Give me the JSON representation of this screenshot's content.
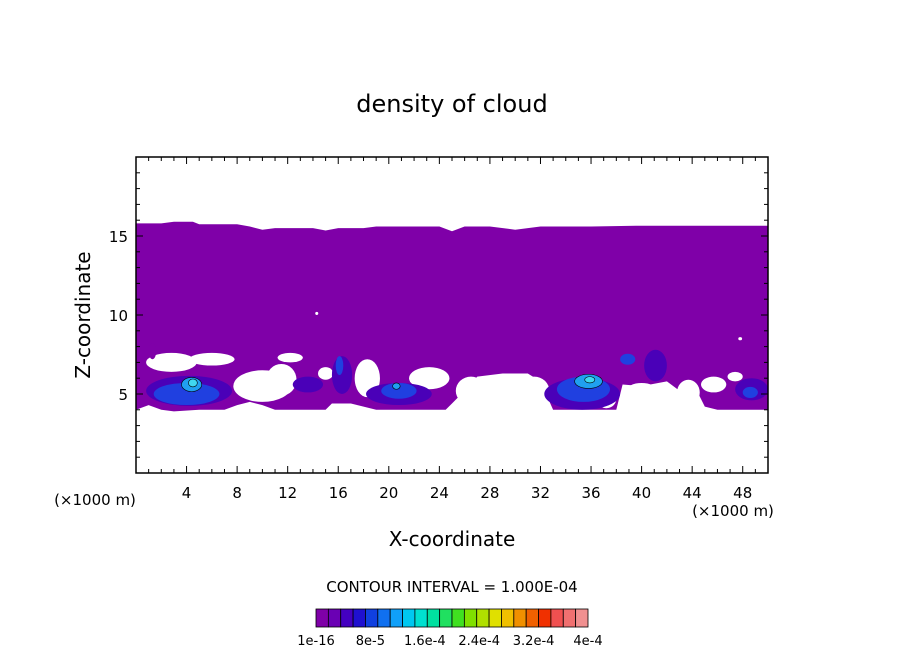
{
  "chart_data": {
    "type": "heatmap",
    "title": "density of cloud",
    "xlabel": "X-coordinate",
    "ylabel": "Z-coordinate",
    "x_unit": "(×1000 m)",
    "y_unit": "(×1000 m)",
    "xlim": [
      0,
      50
    ],
    "ylim": [
      0,
      20
    ],
    "x_ticks": [
      4,
      8,
      12,
      16,
      20,
      24,
      28,
      32,
      36,
      40,
      44,
      48
    ],
    "y_ticks": [
      5,
      10,
      15
    ],
    "contour_interval_text": "CONTOUR INTERVAL = 1.000E-04",
    "colorbar": {
      "colors": [
        "#7f00a8",
        "#6a00b4",
        "#4400c0",
        "#1f10d0",
        "#1040e0",
        "#1070f0",
        "#10a0f8",
        "#00c8f0",
        "#00e0d0",
        "#00e0a0",
        "#20e060",
        "#40e020",
        "#80e000",
        "#b0e000",
        "#e0e000",
        "#f0c000",
        "#f09000",
        "#f06000",
        "#f03000",
        "#f05050",
        "#f07070",
        "#f09090"
      ],
      "tick_labels": [
        "1e-16",
        "8e-5",
        "1.6e-4",
        "2.4e-4",
        "3.2e-4",
        "4e-4"
      ]
    },
    "color_stops": {
      "base": "#7f00a8",
      "dark_blue": "#4a00b8",
      "blue": "#2040e0",
      "light_blue": "#20a0f0",
      "cyan": "#40d8f0"
    },
    "cloud_envelope": {
      "top": [
        [
          0,
          15.8
        ],
        [
          2,
          15.8
        ],
        [
          3,
          15.9
        ],
        [
          4.5,
          15.9
        ],
        [
          5,
          15.75
        ],
        [
          8,
          15.75
        ],
        [
          9,
          15.6
        ],
        [
          10,
          15.4
        ],
        [
          11,
          15.5
        ],
        [
          14,
          15.5
        ],
        [
          15,
          15.35
        ],
        [
          16,
          15.5
        ],
        [
          18,
          15.5
        ],
        [
          19,
          15.6
        ],
        [
          22,
          15.6
        ],
        [
          24,
          15.6
        ],
        [
          25,
          15.3
        ],
        [
          26,
          15.6
        ],
        [
          28,
          15.6
        ],
        [
          30,
          15.4
        ],
        [
          32,
          15.6
        ],
        [
          36,
          15.6
        ],
        [
          40,
          15.65
        ],
        [
          44,
          15.65
        ],
        [
          48,
          15.65
        ],
        [
          50,
          15.65
        ]
      ],
      "bottom": [
        [
          0,
          4.0
        ],
        [
          1,
          4.3
        ],
        [
          2,
          4.0
        ],
        [
          3,
          3.9
        ],
        [
          5,
          4.0
        ],
        [
          7,
          4.0
        ],
        [
          8,
          4.3
        ],
        [
          9,
          4.5
        ],
        [
          10,
          4.3
        ],
        [
          11,
          4.0
        ],
        [
          13,
          4.0
        ],
        [
          15,
          4.0
        ],
        [
          15.5,
          4.4
        ],
        [
          17,
          4.4
        ],
        [
          19,
          4.0
        ],
        [
          21,
          4.0
        ],
        [
          23,
          4.0
        ],
        [
          24.5,
          4.0
        ],
        [
          25,
          4.4
        ],
        [
          26,
          5.2
        ],
        [
          27,
          6.1
        ],
        [
          29,
          6.3
        ],
        [
          31,
          6.3
        ],
        [
          32,
          5.8
        ],
        [
          33,
          4.0
        ],
        [
          35,
          4.0
        ],
        [
          38,
          4.0
        ],
        [
          38.5,
          5.6
        ],
        [
          40,
          5.5
        ],
        [
          42,
          5.8
        ],
        [
          43,
          5.2
        ],
        [
          44.5,
          5.0
        ],
        [
          45,
          4.2
        ],
        [
          46,
          4.0
        ],
        [
          48,
          4.0
        ],
        [
          50,
          4.0
        ]
      ]
    },
    "features": [
      {
        "level": "dark_blue",
        "cx": 4.2,
        "cz": 5.2,
        "rx": 3.4,
        "rz": 0.95
      },
      {
        "level": "blue",
        "cx": 4.0,
        "cz": 5.0,
        "rx": 2.6,
        "rz": 0.7
      },
      {
        "level": "light_blue",
        "cx": 4.4,
        "cz": 5.6,
        "rx": 0.8,
        "rz": 0.45
      },
      {
        "level": "cyan",
        "cx": 4.5,
        "cz": 5.7,
        "rx": 0.35,
        "rz": 0.25
      },
      {
        "level": "dark_blue",
        "cx": 13.6,
        "cz": 5.6,
        "rx": 1.2,
        "rz": 0.5
      },
      {
        "level": "dark_blue",
        "cx": 16.3,
        "cz": 6.2,
        "rx": 0.8,
        "rz": 1.2
      },
      {
        "level": "blue",
        "cx": 16.1,
        "cz": 6.8,
        "rx": 0.3,
        "rz": 0.6
      },
      {
        "level": "dark_blue",
        "cx": 20.8,
        "cz": 5.0,
        "rx": 2.6,
        "rz": 0.7
      },
      {
        "level": "blue",
        "cx": 20.8,
        "cz": 5.2,
        "rx": 1.4,
        "rz": 0.5
      },
      {
        "level": "light_blue",
        "cx": 20.6,
        "cz": 5.5,
        "rx": 0.3,
        "rz": 0.2
      },
      {
        "level": "dark_blue",
        "cx": 35.3,
        "cz": 5.0,
        "rx": 3.0,
        "rz": 1.0
      },
      {
        "level": "blue",
        "cx": 35.4,
        "cz": 5.3,
        "rx": 2.1,
        "rz": 0.8
      },
      {
        "level": "light_blue",
        "cx": 35.8,
        "cz": 5.8,
        "rx": 1.1,
        "rz": 0.45
      },
      {
        "level": "cyan",
        "cx": 35.9,
        "cz": 5.9,
        "rx": 0.4,
        "rz": 0.2
      },
      {
        "level": "blue",
        "cx": 38.9,
        "cz": 7.2,
        "rx": 0.6,
        "rz": 0.35
      },
      {
        "level": "dark_blue",
        "cx": 41.1,
        "cz": 6.8,
        "rx": 0.9,
        "rz": 1.0
      },
      {
        "level": "dark_blue",
        "cx": 48.7,
        "cz": 5.3,
        "rx": 1.3,
        "rz": 0.7
      },
      {
        "level": "blue",
        "cx": 48.6,
        "cz": 5.1,
        "rx": 0.6,
        "rz": 0.35
      },
      {
        "level": "base",
        "cx": 1.3,
        "cz": 7.7,
        "rx": 0.3,
        "rz": 0.5
      }
    ],
    "holes": [
      {
        "cx": 2.8,
        "cz": 7.0,
        "rx": 2.0,
        "rz": 0.6
      },
      {
        "cx": 6.0,
        "cz": 7.2,
        "rx": 1.8,
        "rz": 0.4
      },
      {
        "cx": 10.0,
        "cz": 5.5,
        "rx": 2.3,
        "rz": 1.0
      },
      {
        "cx": 11.5,
        "cz": 5.9,
        "rx": 1.2,
        "rz": 1.0
      },
      {
        "cx": 12.2,
        "cz": 7.3,
        "rx": 1.0,
        "rz": 0.3
      },
      {
        "cx": 18.3,
        "cz": 6.0,
        "rx": 1.0,
        "rz": 1.2
      },
      {
        "cx": 15.0,
        "cz": 6.3,
        "rx": 0.6,
        "rz": 0.4
      },
      {
        "cx": 23.2,
        "cz": 6.0,
        "rx": 1.6,
        "rz": 0.7
      },
      {
        "cx": 26.5,
        "cz": 5.2,
        "rx": 1.2,
        "rz": 0.9
      },
      {
        "cx": 31.5,
        "cz": 5.2,
        "rx": 1.2,
        "rz": 0.9
      },
      {
        "cx": 37.2,
        "cz": 4.7,
        "rx": 0.8,
        "rz": 0.6
      },
      {
        "cx": 40.0,
        "cz": 5.2,
        "rx": 1.2,
        "rz": 0.5
      },
      {
        "cx": 43.7,
        "cz": 5.1,
        "rx": 0.9,
        "rz": 0.8
      },
      {
        "cx": 45.7,
        "cz": 5.6,
        "rx": 1.0,
        "rz": 0.5
      },
      {
        "cx": 47.4,
        "cz": 6.1,
        "rx": 0.6,
        "rz": 0.3
      },
      {
        "cx": 14.3,
        "cz": 10.1,
        "rx": 0.12,
        "rz": 0.1
      },
      {
        "cx": 47.8,
        "cz": 8.5,
        "rx": 0.15,
        "rz": 0.1
      }
    ]
  }
}
